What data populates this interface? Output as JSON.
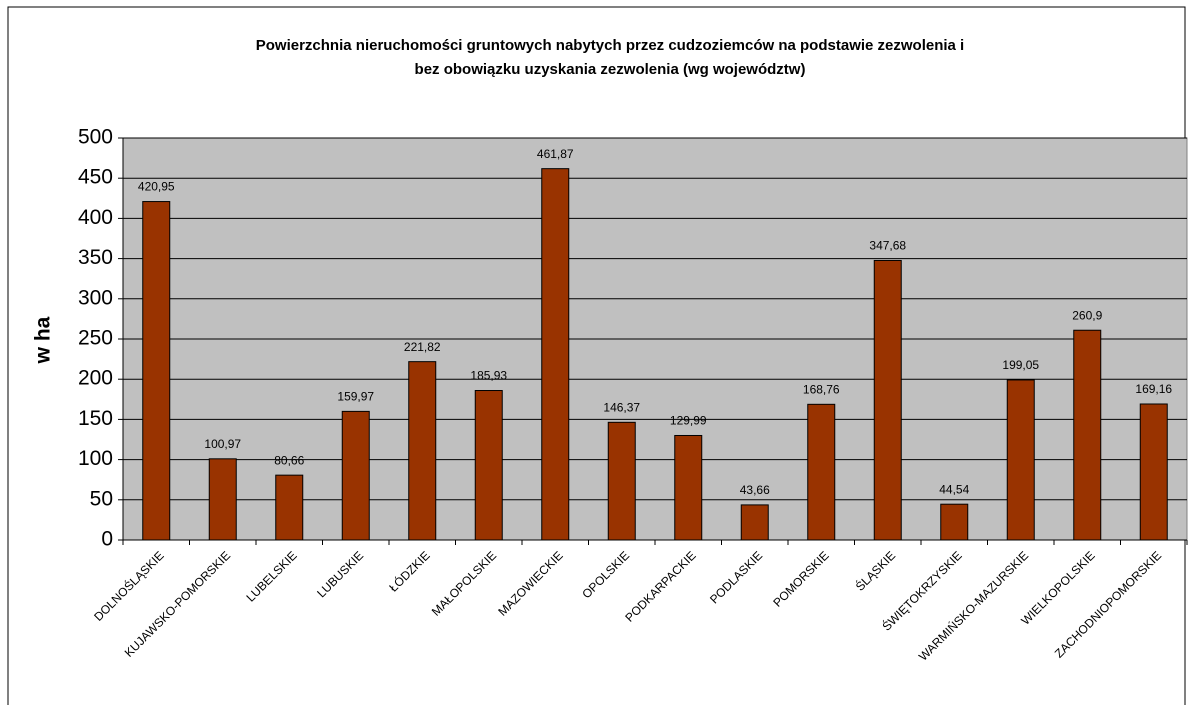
{
  "chart_data": {
    "type": "bar",
    "title": [
      "Powierzchnia nieruchomości gruntowych nabytych przez cudzoziemców na podstawie zezwolenia i",
      "bez obowiązku uzyskania zezwolenia (wg województw)"
    ],
    "ylabel": "w ha",
    "categories": [
      "DOLNOŚLĄSKIE",
      "KUJAWSKO-POMORSKIE",
      "LUBELSKIE",
      "LUBUSKIE",
      "ŁÓDZKIE",
      "MAŁOPOLSKIE",
      "MAZOWIECKIE",
      "OPOLSKIE",
      "PODKARPACKIE",
      "PODLASKIE",
      "POMORSKIE",
      "ŚLĄSKIE",
      "ŚWIĘTOKRZYSKIE",
      "WARMIŃSKO-MAZURSKIE",
      "WIELKOPOLSKIE",
      "ZACHODNIOPOMORSKIE"
    ],
    "values": [
      420.95,
      100.97,
      80.66,
      159.97,
      221.82,
      185.93,
      461.87,
      146.37,
      129.99,
      43.66,
      168.76,
      347.68,
      44.54,
      199.05,
      260.9,
      169.16
    ],
    "value_labels": [
      "420,95",
      "100,97",
      "80,66",
      "159,97",
      "221,82",
      "185,93",
      "461,87",
      "146,37",
      "129,99",
      "43,66",
      "168,76",
      "347,68",
      "44,54",
      "199,05",
      "260,9",
      "169,16"
    ],
    "color": "#993300",
    "ylim": [
      0,
      500
    ],
    "yticks": [
      0,
      50,
      100,
      150,
      200,
      250,
      300,
      350,
      400,
      450,
      500
    ],
    "grid": true
  }
}
